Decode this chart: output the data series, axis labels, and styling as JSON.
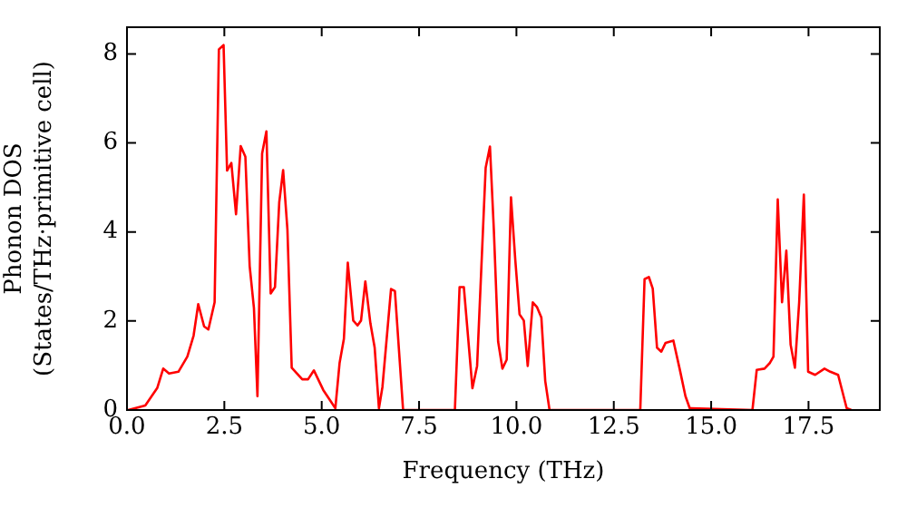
{
  "chart_data": {
    "type": "line",
    "xlabel": "Frequency (THz)",
    "ylabel": "Phonon DOS\n(States/THz·primitive cell)",
    "xlim": [
      0,
      19.33
    ],
    "ylim": [
      0,
      8.6
    ],
    "xticks": [
      {
        "value": 0,
        "label": "0.0"
      },
      {
        "value": 2.5,
        "label": "2.5"
      },
      {
        "value": 5,
        "label": "5.0"
      },
      {
        "value": 7.5,
        "label": "7.5"
      },
      {
        "value": 10,
        "label": "10.0"
      },
      {
        "value": 12.5,
        "label": "12.5"
      },
      {
        "value": 15,
        "label": "15.0"
      },
      {
        "value": 17.5,
        "label": "17.5"
      }
    ],
    "yticks": [
      0,
      2,
      4,
      6,
      8
    ],
    "grid": false,
    "legend": false,
    "marker": "none",
    "line_style": "solid",
    "series": [
      {
        "color": "#ff0000",
        "x": [
          0.03,
          0.47,
          0.78,
          0.93,
          1.08,
          1.32,
          1.55,
          1.71,
          1.83,
          1.98,
          2.09,
          2.25,
          2.36,
          2.48,
          2.57,
          2.68,
          2.8,
          2.92,
          3.04,
          3.15,
          3.26,
          3.35,
          3.47,
          3.58,
          3.69,
          3.8,
          3.91,
          4.01,
          4.12,
          4.23,
          4.5,
          4.65,
          4.8,
          5.04,
          5.35,
          5.46,
          5.57,
          5.67,
          5.81,
          5.92,
          6.01,
          6.12,
          6.25,
          6.36,
          6.47,
          6.56,
          6.78,
          6.88,
          7.09,
          8.42,
          8.54,
          8.65,
          8.87,
          8.99,
          9.21,
          9.32,
          9.42,
          9.53,
          9.64,
          9.75,
          9.86,
          9.97,
          10.08,
          10.19,
          10.29,
          10.42,
          10.53,
          10.64,
          10.74,
          10.85,
          13.18,
          13.29,
          13.4,
          13.5,
          13.61,
          13.72,
          13.83,
          14.03,
          14.19,
          14.34,
          14.45,
          16.06,
          16.17,
          16.37,
          16.51,
          16.6,
          16.71,
          16.82,
          16.93,
          17.04,
          17.15,
          17.26,
          17.38,
          17.49,
          17.67,
          17.91,
          18.06,
          18.26,
          18.48,
          18.6
        ],
        "values": [
          0,
          0.1,
          0.5,
          0.93,
          0.82,
          0.86,
          1.2,
          1.67,
          2.38,
          1.88,
          1.81,
          2.42,
          8.1,
          8.2,
          5.38,
          5.55,
          4.4,
          5.93,
          5.69,
          3.24,
          2.29,
          0.31,
          5.76,
          6.26,
          2.62,
          2.76,
          4.67,
          5.39,
          4.05,
          0.95,
          0.69,
          0.69,
          0.89,
          0.45,
          0.04,
          1.06,
          1.6,
          3.31,
          2.01,
          1.9,
          2.01,
          2.89,
          1.95,
          1.4,
          0.04,
          0.52,
          2.72,
          2.67,
          0,
          0,
          2.76,
          2.76,
          0.49,
          0.99,
          5.44,
          5.92,
          4.05,
          1.54,
          0.93,
          1.13,
          4.78,
          3.38,
          2.15,
          2.01,
          0.99,
          2.42,
          2.31,
          2.08,
          0.65,
          0,
          0,
          2.94,
          2.99,
          2.73,
          1.4,
          1.31,
          1.51,
          1.56,
          0.93,
          0.31,
          0.04,
          0,
          0.9,
          0.93,
          1.06,
          1.2,
          4.73,
          2.42,
          3.58,
          1.47,
          0.95,
          2.42,
          4.84,
          0.86,
          0.79,
          0.93,
          0.86,
          0.79,
          0.04,
          0
        ]
      }
    ]
  }
}
